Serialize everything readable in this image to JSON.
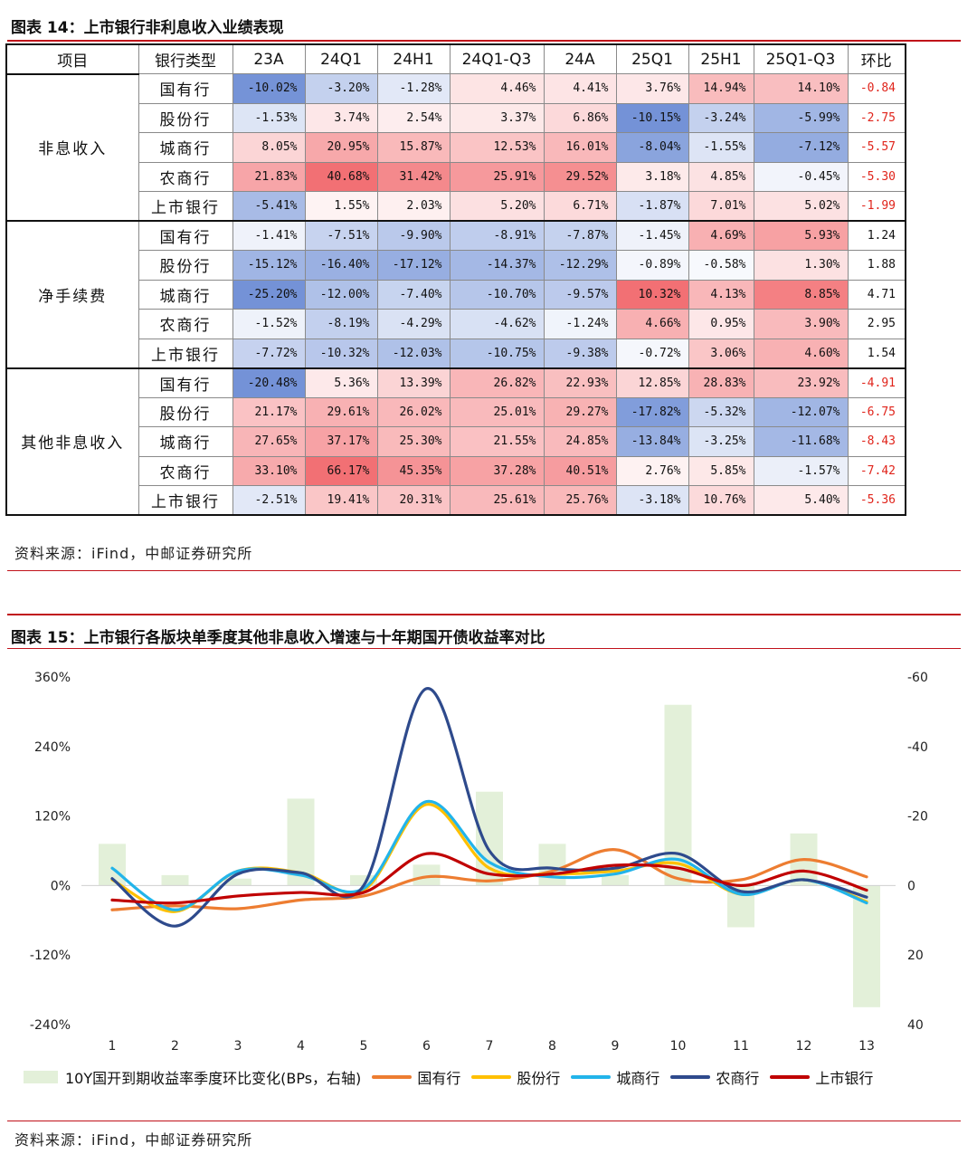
{
  "fig14": {
    "title": "图表 14：上市银行非利息收入业绩表现",
    "source": "资料来源：iFind，中邮证券研究所",
    "headers": [
      "项目",
      "银行类型",
      "23A",
      "24Q1",
      "24H1",
      "24Q1-Q3",
      "24A",
      "25Q1",
      "25H1",
      "25Q1-Q3",
      "环比"
    ],
    "groups": [
      {
        "name": "非息收入",
        "rows": [
          {
            "type": "国有行",
            "values": [
              -10.02,
              -3.2,
              -1.28,
              4.46,
              4.41,
              3.76,
              14.94,
              14.1
            ],
            "labels": [
              "-10.02%",
              "-3.20%",
              "-1.28%",
              "4.46%",
              "4.41%",
              "3.76%",
              "14.94%",
              "14.10%"
            ],
            "hb": "-0.84",
            "hb_value": -0.84
          },
          {
            "type": "股份行",
            "values": [
              -1.53,
              3.74,
              2.54,
              3.37,
              6.86,
              -10.15,
              -3.24,
              -5.99
            ],
            "labels": [
              "-1.53%",
              "3.74%",
              "2.54%",
              "3.37%",
              "6.86%",
              "-10.15%",
              "-3.24%",
              "-5.99%"
            ],
            "hb": "-2.75",
            "hb_value": -2.75
          },
          {
            "type": "城商行",
            "values": [
              8.05,
              20.95,
              15.87,
              12.53,
              16.01,
              -8.04,
              -1.55,
              -7.12
            ],
            "labels": [
              "8.05%",
              "20.95%",
              "15.87%",
              "12.53%",
              "16.01%",
              "-8.04%",
              "-1.55%",
              "-7.12%"
            ],
            "hb": "-5.57",
            "hb_value": -5.57
          },
          {
            "type": "农商行",
            "values": [
              21.83,
              40.68,
              31.42,
              25.91,
              29.52,
              3.18,
              4.85,
              -0.45
            ],
            "labels": [
              "21.83%",
              "40.68%",
              "31.42%",
              "25.91%",
              "29.52%",
              "3.18%",
              "4.85%",
              "-0.45%"
            ],
            "hb": "-5.30",
            "hb_value": -5.3
          },
          {
            "type": "上市银行",
            "values": [
              -5.41,
              1.55,
              2.03,
              5.2,
              6.71,
              -1.87,
              7.01,
              5.02
            ],
            "labels": [
              "-5.41%",
              "1.55%",
              "2.03%",
              "5.20%",
              "6.71%",
              "-1.87%",
              "7.01%",
              "5.02%"
            ],
            "hb": "-1.99",
            "hb_value": -1.99
          }
        ]
      },
      {
        "name": "净手续费",
        "rows": [
          {
            "type": "国有行",
            "values": [
              -1.41,
              -7.51,
              -9.9,
              -8.91,
              -7.87,
              -1.45,
              4.69,
              5.93
            ],
            "labels": [
              "-1.41%",
              "-7.51%",
              "-9.90%",
              "-8.91%",
              "-7.87%",
              "-1.45%",
              "4.69%",
              "5.93%"
            ],
            "hb": "1.24",
            "hb_value": 1.24
          },
          {
            "type": "股份行",
            "values": [
              -15.12,
              -16.4,
              -17.12,
              -14.37,
              -12.29,
              -0.89,
              -0.58,
              1.3
            ],
            "labels": [
              "-15.12%",
              "-16.40%",
              "-17.12%",
              "-14.37%",
              "-12.29%",
              "-0.89%",
              "-0.58%",
              "1.30%"
            ],
            "hb": "1.88",
            "hb_value": 1.88
          },
          {
            "type": "城商行",
            "values": [
              -25.2,
              -12.0,
              -7.4,
              -10.7,
              -9.57,
              10.32,
              4.13,
              8.85
            ],
            "labels": [
              "-25.20%",
              "-12.00%",
              "-7.40%",
              "-10.70%",
              "-9.57%",
              "10.32%",
              "4.13%",
              "8.85%"
            ],
            "hb": "4.71",
            "hb_value": 4.71
          },
          {
            "type": "农商行",
            "values": [
              -1.52,
              -8.19,
              -4.29,
              -4.62,
              -1.24,
              4.66,
              0.95,
              3.9
            ],
            "labels": [
              "-1.52%",
              "-8.19%",
              "-4.29%",
              "-4.62%",
              "-1.24%",
              "4.66%",
              "0.95%",
              "3.90%"
            ],
            "hb": "2.95",
            "hb_value": 2.95
          },
          {
            "type": "上市银行",
            "values": [
              -7.72,
              -10.32,
              -12.03,
              -10.75,
              -9.38,
              -0.72,
              3.06,
              4.6
            ],
            "labels": [
              "-7.72%",
              "-10.32%",
              "-12.03%",
              "-10.75%",
              "-9.38%",
              "-0.72%",
              "3.06%",
              "4.60%"
            ],
            "hb": "1.54",
            "hb_value": 1.54
          }
        ]
      },
      {
        "name": "其他非息收入",
        "rows": [
          {
            "type": "国有行",
            "values": [
              -20.48,
              5.36,
              13.39,
              26.82,
              22.93,
              12.85,
              28.83,
              23.92
            ],
            "labels": [
              "-20.48%",
              "5.36%",
              "13.39%",
              "26.82%",
              "22.93%",
              "12.85%",
              "28.83%",
              "23.92%"
            ],
            "hb": "-4.91",
            "hb_value": -4.91
          },
          {
            "type": "股份行",
            "values": [
              21.17,
              29.61,
              26.02,
              25.01,
              29.27,
              -17.82,
              -5.32,
              -12.07
            ],
            "labels": [
              "21.17%",
              "29.61%",
              "26.02%",
              "25.01%",
              "29.27%",
              "-17.82%",
              "-5.32%",
              "-12.07%"
            ],
            "hb": "-6.75",
            "hb_value": -6.75
          },
          {
            "type": "城商行",
            "values": [
              27.65,
              37.17,
              25.3,
              21.55,
              24.85,
              -13.84,
              -3.25,
              -11.68
            ],
            "labels": [
              "27.65%",
              "37.17%",
              "25.30%",
              "21.55%",
              "24.85%",
              "-13.84%",
              "-3.25%",
              "-11.68%"
            ],
            "hb": "-8.43",
            "hb_value": -8.43
          },
          {
            "type": "农商行",
            "values": [
              33.1,
              66.17,
              45.35,
              37.28,
              40.51,
              2.76,
              5.85,
              -1.57
            ],
            "labels": [
              "33.10%",
              "66.17%",
              "45.35%",
              "37.28%",
              "40.51%",
              "2.76%",
              "5.85%",
              "-1.57%"
            ],
            "hb": "-7.42",
            "hb_value": -7.42
          },
          {
            "type": "上市银行",
            "values": [
              -2.51,
              19.41,
              20.31,
              25.61,
              25.76,
              -3.18,
              10.76,
              5.4
            ],
            "labels": [
              "-2.51%",
              "19.41%",
              "20.31%",
              "25.61%",
              "25.76%",
              "-3.18%",
              "10.76%",
              "5.40%"
            ],
            "hb": "-5.36",
            "hb_value": -5.36
          }
        ]
      }
    ]
  },
  "fig15": {
    "title": "图表 15：上市银行各版块单季度其他非息收入增速与十年期国开债收益率对比",
    "source": "资料来源：iFind，中邮证券研究所"
  },
  "colors": {
    "red_text": "#e0241b",
    "heat_negative": "#5b7fd0",
    "heat_positive": "#f0575b",
    "bar": "#e3f0d9",
    "guoyou": "#ed7d31",
    "gufen": "#ffc000",
    "chengshang": "#22b4ea",
    "nongshang": "#2e4a8c",
    "shangshi": "#c00000"
  },
  "chart_data": {
    "type": "line",
    "x": [
      1,
      2,
      3,
      4,
      5,
      6,
      7,
      8,
      9,
      10,
      11,
      12,
      13
    ],
    "y_left": {
      "ticks": [
        "360%",
        "240%",
        "120%",
        "0%",
        "-120%",
        "-240%"
      ],
      "tick_values": [
        360,
        240,
        120,
        0,
        -120,
        -240
      ],
      "range": [
        -240,
        360
      ]
    },
    "y_right": {
      "ticks": [
        "-60",
        "-40",
        "-20",
        "0",
        "20",
        "40"
      ],
      "tick_values": [
        -60,
        -40,
        -20,
        0,
        20,
        40
      ],
      "range": [
        40,
        -60
      ],
      "inverted": true
    },
    "bars": {
      "name": "10Y国开到期收益率季度环比变化(BPs，右轴)",
      "axis": "right",
      "values": [
        -12,
        -3,
        -2,
        -25,
        -3,
        -6,
        -27,
        -12,
        -3,
        -52,
        12,
        -15,
        35
      ]
    },
    "series": [
      {
        "name": "国有行",
        "color_key": "guoyou",
        "values": [
          -42,
          -35,
          -40,
          -25,
          -18,
          15,
          8,
          25,
          62,
          12,
          10,
          45,
          15
        ]
      },
      {
        "name": "股份行",
        "color_key": "gufen",
        "values": [
          10,
          -45,
          25,
          22,
          -8,
          140,
          30,
          20,
          25,
          38,
          -15,
          10,
          -28
        ]
      },
      {
        "name": "城商行",
        "color_key": "chengshang",
        "values": [
          30,
          -42,
          25,
          18,
          -5,
          145,
          40,
          15,
          20,
          45,
          -15,
          10,
          -30
        ]
      },
      {
        "name": "农商行",
        "color_key": "nongshang",
        "values": [
          12,
          -70,
          20,
          22,
          0,
          340,
          60,
          30,
          30,
          55,
          -10,
          10,
          -20
        ]
      },
      {
        "name": "上市银行",
        "color_key": "shangshi",
        "values": [
          -25,
          -30,
          -18,
          -12,
          -12,
          55,
          20,
          20,
          35,
          30,
          0,
          25,
          -8
        ]
      }
    ]
  }
}
